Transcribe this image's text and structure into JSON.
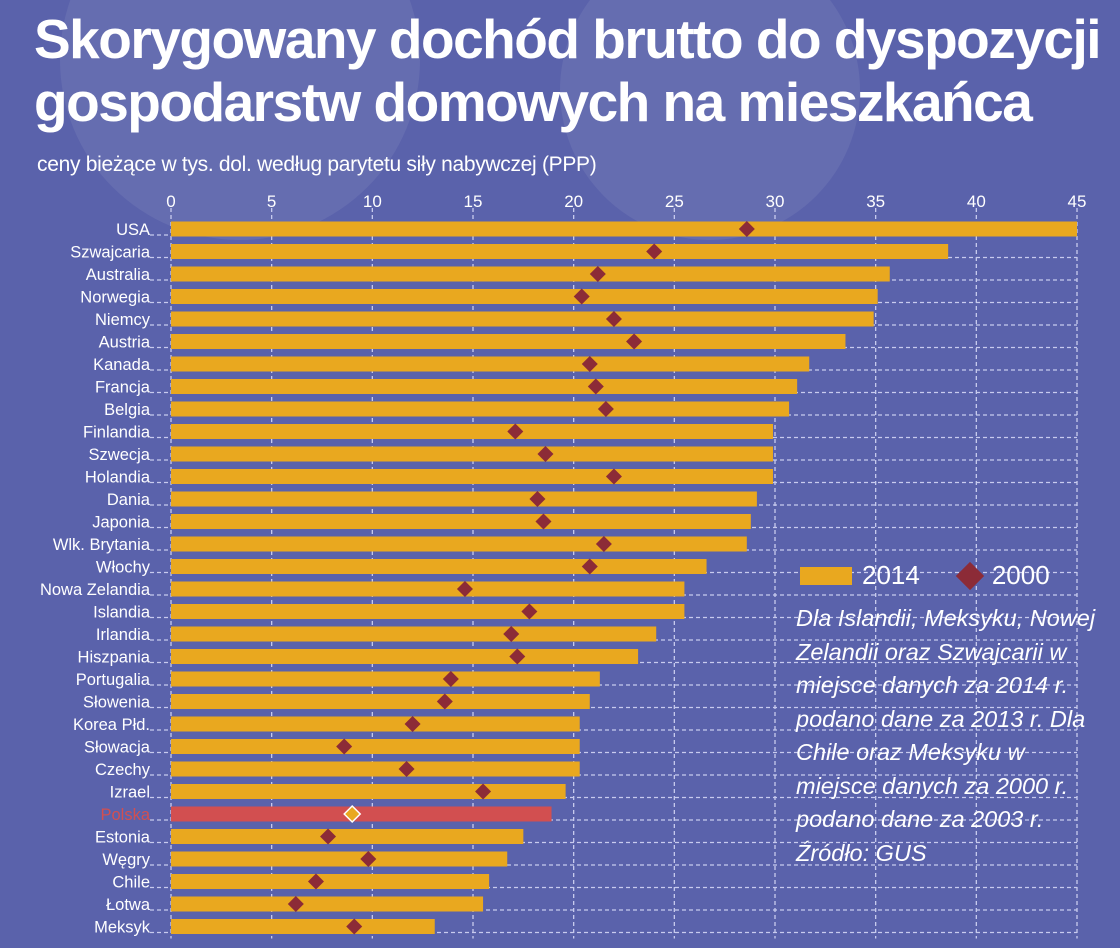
{
  "title_line1": "Skorygowany dochód brutto do dyspozycji",
  "title_line2": "gospodarstw domowych na mieszkańca",
  "subtitle": "ceny bieżące w tys. dol. według parytetu siły nabywczej (PPP)",
  "note": "Dla Islandii, Meksyku, Nowej Zelandii oraz Szwajcarii w miejsce danych za 2014 r. podano dane za 2013 r. Dla Chile oraz Meksyku w miejsce danych za 2000 r. podano dane za 2003 r.",
  "source": "Źródło: GUS",
  "colors": {
    "background": "#5a62ab",
    "bar": "#e9a81f",
    "highlight_bar": "#d24f50",
    "diamond": "#8c2b37",
    "highlight_diamond": "#e9a81f",
    "highlight_label": "#d24f50"
  },
  "chart_data": {
    "type": "bar",
    "orientation": "horizontal",
    "xlim": [
      0,
      45
    ],
    "xticks": [
      0,
      5,
      10,
      15,
      20,
      25,
      30,
      35,
      40,
      45
    ],
    "grid": true,
    "legend": "right",
    "highlight": "Polska",
    "categories": [
      "USA",
      "Szwajcaria",
      "Australia",
      "Norwegia",
      "Niemcy",
      "Austria",
      "Kanada",
      "Francja",
      "Belgia",
      "Finlandia",
      "Szwecja",
      "Holandia",
      "Dania",
      "Japonia",
      "Wlk. Brytania",
      "Włochy",
      "Nowa Zelandia",
      "Islandia",
      "Irlandia",
      "Hiszpania",
      "Portugalia",
      "Słowenia",
      "Korea Płd.",
      "Słowacja",
      "Czechy",
      "Izrael",
      "Polska",
      "Estonia",
      "Węgry",
      "Chile",
      "Łotwa",
      "Meksyk"
    ],
    "series": [
      {
        "name": "2014",
        "marker": "bar",
        "values": [
          45.0,
          38.6,
          35.7,
          35.1,
          34.9,
          33.5,
          31.7,
          31.1,
          30.7,
          29.9,
          29.9,
          29.9,
          29.1,
          28.8,
          28.6,
          26.6,
          25.5,
          25.5,
          24.1,
          23.2,
          21.3,
          20.8,
          20.3,
          20.3,
          20.3,
          19.6,
          18.9,
          17.5,
          16.7,
          15.8,
          15.5,
          13.1
        ]
      },
      {
        "name": "2000",
        "marker": "diamond",
        "values": [
          28.6,
          24.0,
          21.2,
          20.4,
          22.0,
          23.0,
          20.8,
          21.1,
          21.6,
          17.1,
          18.6,
          22.0,
          18.2,
          18.5,
          21.5,
          20.8,
          14.6,
          17.8,
          16.9,
          17.2,
          13.9,
          13.6,
          12.0,
          8.6,
          11.7,
          15.5,
          9.0,
          7.8,
          9.8,
          7.2,
          6.2,
          9.1
        ]
      }
    ]
  }
}
